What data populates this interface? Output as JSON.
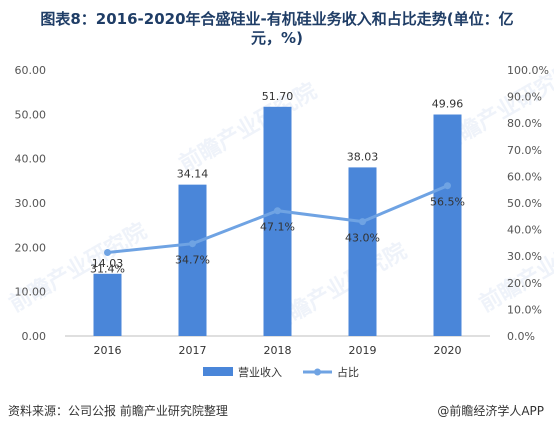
{
  "title_line1": "图表8：2016-2020年合盛硅业-有机硅业务收入和占比走势(单位：亿",
  "title_line2": "元，%)",
  "source": "资料来源：公司公报 前瞻产业研究院整理",
  "credit": "@前瞻经济学人APP",
  "watermark_text": "前瞻产业研究院",
  "chart_data": {
    "type": "bar+line",
    "categories": [
      "2016",
      "2017",
      "2018",
      "2019",
      "2020"
    ],
    "series": [
      {
        "name": "营业收入",
        "type": "bar",
        "axis": "left",
        "values": [
          14.03,
          34.14,
          51.7,
          38.03,
          49.96
        ],
        "labels": [
          "14.03",
          "34.14",
          "51.70",
          "38.03",
          "49.96"
        ],
        "color": "#4a86d9"
      },
      {
        "name": "占比",
        "type": "line",
        "axis": "right",
        "values": [
          31.4,
          34.7,
          47.1,
          43.0,
          56.5
        ],
        "labels": [
          "31.4%",
          "34.7%",
          "47.1%",
          "43.0%",
          "56.5%"
        ],
        "color": "#6fa3e3"
      }
    ],
    "y_left": {
      "ylim": [
        0,
        60
      ],
      "ticks": [
        "0.00",
        "10.00",
        "20.00",
        "30.00",
        "40.00",
        "50.00",
        "60.00"
      ]
    },
    "y_right": {
      "ylim": [
        0,
        100
      ],
      "ticks": [
        "0.0%",
        "10.0%",
        "20.0%",
        "30.0%",
        "40.0%",
        "50.0%",
        "60.0%",
        "70.0%",
        "80.0%",
        "90.0%",
        "100.0%"
      ]
    },
    "grid": false,
    "legend": "bottom"
  }
}
